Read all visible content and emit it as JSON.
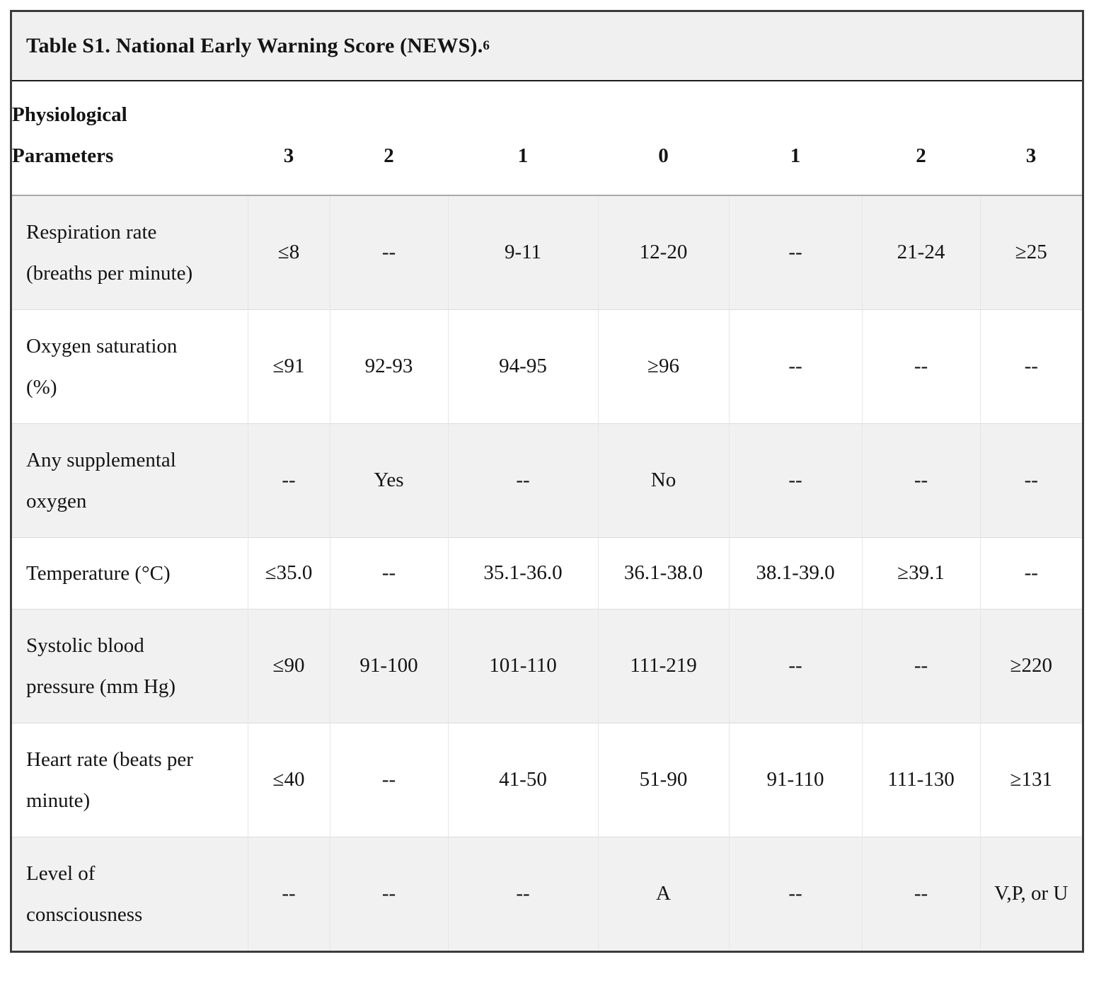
{
  "title": {
    "text": "Table S1. National Early Warning Score (NEWS).",
    "superscript": "6"
  },
  "colors": {
    "text": "#141414",
    "title_background": "#f0f0f0",
    "shaded_row_background": "#f1f1f1",
    "outer_border": "#3c3c3c",
    "title_rule": "#1c1c1c",
    "header_rule": "#a9a9a9",
    "row_rule": "#dcdcdc",
    "column_rule": "#e6e6e6"
  },
  "table": {
    "header": {
      "param_label_lines": [
        "Physiological",
        "Parameters"
      ],
      "scores": [
        "3",
        "2",
        "1",
        "0",
        "1",
        "2",
        "3"
      ]
    },
    "rows": [
      {
        "label_lines": [
          "Respiration rate",
          "(breaths per minute)"
        ],
        "values": [
          "≤8",
          "--",
          "9-11",
          "12-20",
          "--",
          "21-24",
          "≥25"
        ]
      },
      {
        "label_lines": [
          "Oxygen saturation",
          "(%)"
        ],
        "values": [
          "≤91",
          "92-93",
          "94-95",
          "≥96",
          "--",
          "--",
          "--"
        ]
      },
      {
        "label_lines": [
          "Any supplemental",
          "oxygen"
        ],
        "values": [
          "--",
          "Yes",
          "--",
          "No",
          "--",
          "--",
          "--"
        ]
      },
      {
        "label_lines": [
          "Temperature (°C)"
        ],
        "values": [
          "≤35.0",
          "--",
          "35.1-36.0",
          "36.1-38.0",
          "38.1-39.0",
          "≥39.1",
          "--"
        ]
      },
      {
        "label_lines": [
          "Systolic blood",
          "pressure (mm Hg)"
        ],
        "values": [
          "≤90",
          "91-100",
          "101-110",
          "111-219",
          "--",
          "--",
          "≥220"
        ]
      },
      {
        "label_lines": [
          "Heart rate (beats per",
          "minute)"
        ],
        "values": [
          "≤40",
          "--",
          "41-50",
          "51-90",
          "91-110",
          "111-130",
          "≥131"
        ]
      },
      {
        "label_lines": [
          "Level of",
          "consciousness"
        ],
        "values": [
          "--",
          "--",
          "--",
          "A",
          "--",
          "--",
          "V,P, or U"
        ]
      }
    ]
  }
}
